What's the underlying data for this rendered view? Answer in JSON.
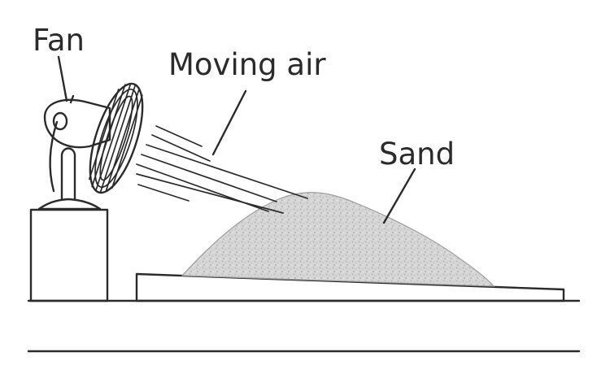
{
  "labels": {
    "fan": "Fan",
    "moving_air": "Moving air",
    "sand": "Sand"
  },
  "colors": {
    "ink": "#2b2b2b",
    "sand_fill": "#d9d9d9",
    "background": "#ffffff"
  }
}
